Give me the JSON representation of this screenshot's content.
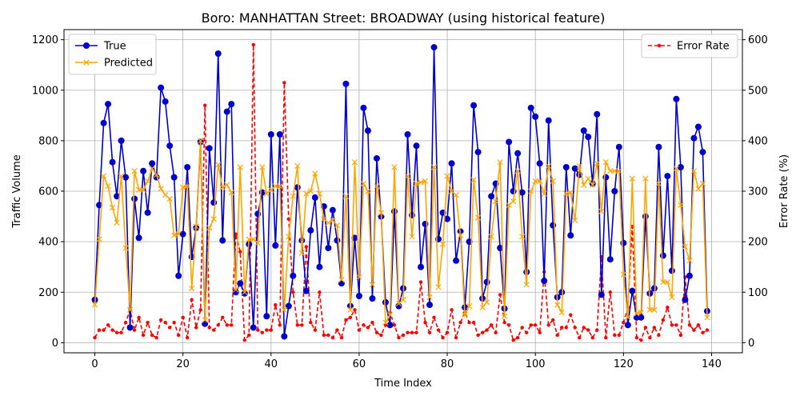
{
  "chart_data": {
    "type": "line",
    "title": "Boro: MANHATTAN Street: BROADWAY (using historical feature)",
    "xlabel": "Time Index",
    "ylabel": "Traffic Volume",
    "y2label": "Error Rate (%)",
    "xlim": [
      -7,
      147
    ],
    "ylim": [
      -40,
      1240
    ],
    "y2lim": [
      -20,
      620
    ],
    "x_ticks": [
      0,
      20,
      40,
      60,
      80,
      100,
      120,
      140
    ],
    "y_ticks": [
      0,
      200,
      400,
      600,
      800,
      1000,
      1200
    ],
    "y2_ticks": [
      0,
      100,
      200,
      300,
      400,
      500,
      600
    ],
    "grid": true,
    "legend_left": {
      "placement": "upper left",
      "entries": [
        "True",
        "Predicted"
      ]
    },
    "legend_right": {
      "placement": "upper right",
      "entries": [
        "Error Rate"
      ]
    },
    "series": [
      {
        "name": "True",
        "axis": "left",
        "color": "#0000cc",
        "marker": "circle",
        "values": [
          170,
          545,
          870,
          945,
          715,
          580,
          800,
          655,
          60,
          570,
          415,
          680,
          515,
          710,
          655,
          1010,
          955,
          780,
          655,
          265,
          430,
          695,
          340,
          455,
          795,
          75,
          770,
          555,
          1145,
          405,
          915,
          945,
          200,
          235,
          195,
          390,
          60,
          510,
          595,
          105,
          825,
          385,
          825,
          25,
          145,
          265,
          615,
          405,
          205,
          445,
          575,
          300,
          540,
          375,
          525,
          405,
          235,
          1025,
          145,
          415,
          185,
          930,
          840,
          175,
          730,
          500,
          160,
          70,
          520,
          145,
          215,
          825,
          505,
          780,
          300,
          470,
          150,
          1170,
          410,
          515,
          490,
          710,
          325,
          440,
          140,
          400,
          940,
          755,
          175,
          240,
          580,
          630,
          375,
          135,
          795,
          600,
          750,
          595,
          280,
          930,
          895,
          710,
          245,
          880,
          465,
          180,
          200,
          695,
          425,
          690,
          665,
          840,
          815,
          630,
          905,
          190,
          655,
          330,
          600,
          775,
          395,
          70,
          205,
          100,
          100,
          500,
          195,
          215,
          775,
          345,
          660,
          285,
          965,
          695,
          170,
          265,
          810,
          855,
          755,
          125
        ]
      },
      {
        "name": "Predicted",
        "axis": "left",
        "color": "#ffa500",
        "marker": "x",
        "values": [
          150,
          410,
          660,
          620,
          535,
          475,
          660,
          375,
          130,
          680,
          605,
          605,
          640,
          690,
          665,
          610,
          585,
          570,
          425,
          430,
          615,
          620,
          215,
          460,
          800,
          90,
          455,
          490,
          705,
          615,
          625,
          595,
          210,
          695,
          200,
          410,
          410,
          395,
          695,
          590,
          605,
          620,
          620,
          130,
          420,
          580,
          700,
          355,
          590,
          600,
          670,
          590,
          490,
          475,
          485,
          465,
          250,
          580,
          130,
          715,
          260,
          630,
          600,
          230,
          620,
          515,
          80,
          110,
          695,
          155,
          170,
          660,
          420,
          630,
          635,
          640,
          180,
          695,
          220,
          390,
          660,
          600,
          585,
          425,
          110,
          145,
          645,
          495,
          140,
          160,
          420,
          560,
          715,
          105,
          545,
          560,
          680,
          420,
          230,
          600,
          640,
          640,
          590,
          700,
          640,
          150,
          120,
          590,
          595,
          485,
          700,
          625,
          650,
          625,
          710,
          520,
          715,
          680,
          680,
          680,
          270,
          100,
          650,
          115,
          120,
          650,
          130,
          130,
          630,
          240,
          240,
          180,
          690,
          545,
          380,
          325,
          680,
          610,
          630,
          100
        ]
      },
      {
        "name": "Error Rate",
        "axis": "right",
        "color": "#ff0000",
        "marker": "dot",
        "values": [
          10,
          25,
          25,
          35,
          25,
          20,
          20,
          40,
          65,
          25,
          50,
          15,
          40,
          15,
          10,
          45,
          40,
          30,
          40,
          15,
          50,
          10,
          85,
          30,
          65,
          470,
          30,
          25,
          35,
          50,
          35,
          35,
          215,
          180,
          5,
          15,
          590,
          25,
          20,
          25,
          25,
          75,
          35,
          515,
          245,
          100,
          35,
          35,
          190,
          40,
          25,
          100,
          15,
          15,
          10,
          25,
          10,
          45,
          50,
          65,
          25,
          35,
          30,
          40,
          20,
          15,
          35,
          60,
          35,
          10,
          15,
          20,
          20,
          20,
          120,
          40,
          20,
          50,
          25,
          10,
          20,
          65,
          10,
          40,
          60,
          40,
          40,
          15,
          20,
          25,
          35,
          20,
          95,
          40,
          35,
          5,
          10,
          30,
          20,
          35,
          35,
          20,
          140,
          35,
          45,
          15,
          30,
          30,
          55,
          30,
          10,
          30,
          25,
          10,
          25,
          170,
          10,
          100,
          15,
          15,
          40,
          70,
          230,
          10,
          5,
          30,
          10,
          30,
          15,
          45,
          70,
          35,
          35,
          15,
          130,
          35,
          25,
          35,
          20,
          25
        ]
      }
    ]
  }
}
